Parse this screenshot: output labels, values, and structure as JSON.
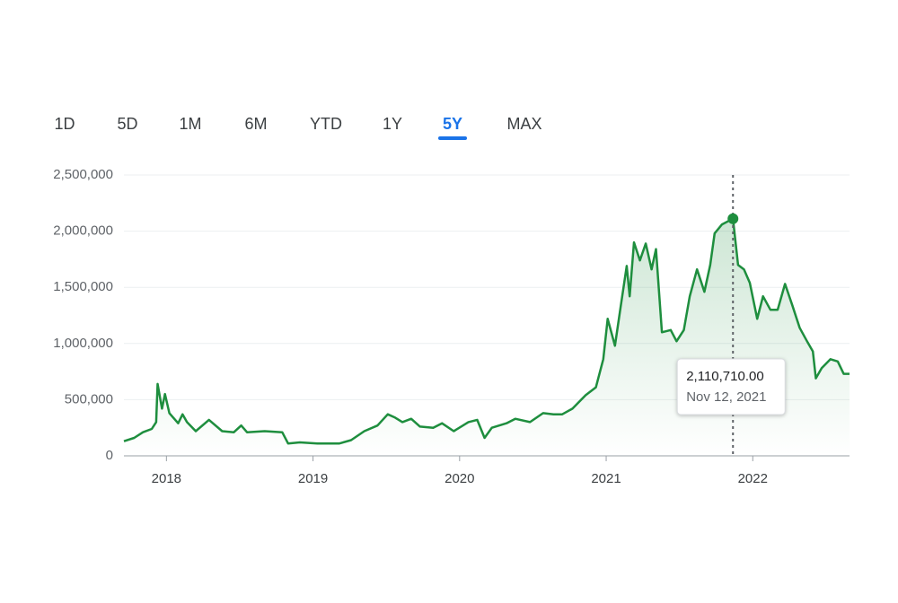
{
  "tabs": [
    "1D",
    "5D",
    "1M",
    "6M",
    "YTD",
    "1Y",
    "5Y",
    "MAX"
  ],
  "selected_tab": 6,
  "chart_data": {
    "type": "line",
    "x": [
      2017.71,
      2017.78,
      2017.84,
      2017.9,
      2017.93,
      2017.94,
      2017.97,
      2017.99,
      2018.02,
      2018.08,
      2018.11,
      2018.14,
      2018.2,
      2018.29,
      2018.38,
      2018.46,
      2018.51,
      2018.55,
      2018.67,
      2018.79,
      2018.83,
      2018.91,
      2019.03,
      2019.18,
      2019.26,
      2019.35,
      2019.44,
      2019.51,
      2019.56,
      2019.61,
      2019.67,
      2019.73,
      2019.82,
      2019.88,
      2019.96,
      2020.06,
      2020.12,
      2020.17,
      2020.22,
      2020.32,
      2020.38,
      2020.48,
      2020.57,
      2020.64,
      2020.7,
      2020.77,
      2020.86,
      2020.93,
      2020.98,
      2021.01,
      2021.06,
      2021.1,
      2021.14,
      2021.16,
      2021.19,
      2021.23,
      2021.27,
      2021.31,
      2021.34,
      2021.38,
      2021.44,
      2021.48,
      2021.53,
      2021.57,
      2021.62,
      2021.67,
      2021.71,
      2021.74,
      2021.79,
      2021.865,
      2021.9,
      2021.94,
      2021.98,
      2022.03,
      2022.07,
      2022.12,
      2022.17,
      2022.22,
      2022.27,
      2022.32,
      2022.37,
      2022.41,
      2022.43,
      2022.47,
      2022.53,
      2022.58,
      2022.62,
      2022.66
    ],
    "series": [
      {
        "color": "#1e8e3e",
        "values": [
          130000,
          160000,
          210000,
          240000,
          300000,
          640000,
          420000,
          550000,
          380000,
          290000,
          370000,
          300000,
          220000,
          320000,
          220000,
          210000,
          270000,
          210000,
          220000,
          210000,
          110000,
          120000,
          110000,
          110000,
          140000,
          220000,
          270000,
          370000,
          340000,
          300000,
          330000,
          260000,
          250000,
          290000,
          220000,
          300000,
          320000,
          160000,
          250000,
          290000,
          330000,
          300000,
          380000,
          370000,
          370000,
          420000,
          540000,
          610000,
          860000,
          1220000,
          980000,
          1340000,
          1690000,
          1420000,
          1900000,
          1740000,
          1890000,
          1660000,
          1840000,
          1100000,
          1120000,
          1020000,
          1120000,
          1420000,
          1660000,
          1460000,
          1700000,
          1980000,
          2060000,
          2110710,
          1700000,
          1660000,
          1540000,
          1220000,
          1420000,
          1300000,
          1300000,
          1530000,
          1340000,
          1140000,
          1020000,
          930000,
          690000,
          780000,
          860000,
          840000,
          730000,
          730000
        ]
      }
    ],
    "xlim": [
      2017.71,
      2022.66
    ],
    "xticks": [
      2018,
      2019,
      2020,
      2021,
      2022
    ],
    "ylim": [
      0,
      2500000
    ],
    "yticks": [
      0,
      {
        "value": 500000,
        "label": "500,000"
      },
      {
        "value": 1000000,
        "label": "1,000,000"
      },
      {
        "value": 1500000,
        "label": "1,500,000"
      },
      {
        "value": 2000000,
        "label": "2,000,000"
      },
      {
        "value": 2500000,
        "label": "2,500,000"
      }
    ],
    "grid": true,
    "tooltip": {
      "x": 2021.865,
      "y": 2110710,
      "value_label": "2,110,710.00",
      "date_label": "Nov 12, 2021"
    }
  }
}
